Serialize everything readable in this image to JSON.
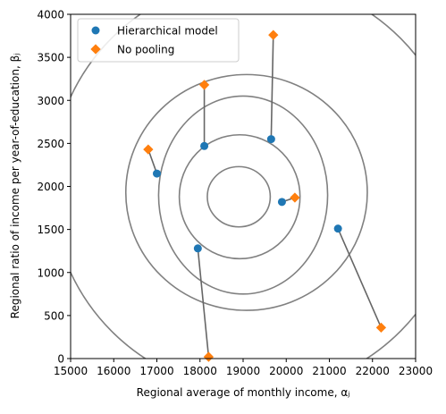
{
  "chart_data": {
    "type": "scatter",
    "xlabel": "Regional average of monthly income, αⱼ",
    "ylabel": "Regional ratio of income per year-of-education, βⱼ",
    "xlim": [
      15000,
      23000
    ],
    "ylim": [
      0,
      4000
    ],
    "x_ticks": [
      "15000",
      "16000",
      "17000",
      "18000",
      "19000",
      "20000",
      "21000",
      "22000",
      "23000"
    ],
    "y_ticks": [
      "0",
      "500",
      "1000",
      "1500",
      "2000",
      "2500",
      "3000",
      "3500",
      "4000"
    ],
    "grid": false,
    "legend_position": "top-left",
    "colors": {
      "hierarchical": "#1f77b4",
      "no_pooling": "#ff7f0e",
      "contour": "#808080",
      "link": "#666666"
    },
    "series": [
      {
        "name": "Hierarchical model",
        "marker": "circle",
        "points": [
          [
            17000,
            2150
          ],
          [
            18100,
            2470
          ],
          [
            19650,
            2550
          ],
          [
            19900,
            1820
          ],
          [
            17950,
            1280
          ],
          [
            21200,
            1510
          ]
        ]
      },
      {
        "name": "No pooling",
        "marker": "diamond",
        "points": [
          [
            16800,
            2430
          ],
          [
            18100,
            3180
          ],
          [
            19700,
            3760
          ],
          [
            20200,
            1870
          ],
          [
            18200,
            20
          ],
          [
            22200,
            360
          ]
        ]
      }
    ],
    "contours": [
      {
        "cx": 18900,
        "cy": 1880,
        "rx": 730,
        "ry": 350
      },
      {
        "cx": 18920,
        "cy": 1880,
        "rx": 1400,
        "ry": 720
      },
      {
        "cx": 19000,
        "cy": 1900,
        "rx": 1960,
        "ry": 1150
      },
      {
        "cx": 19080,
        "cy": 1930,
        "rx": 2800,
        "ry": 1370
      },
      {
        "cx": 19300,
        "cy": 2020,
        "rx": 4750,
        "ry": 2400
      }
    ]
  }
}
